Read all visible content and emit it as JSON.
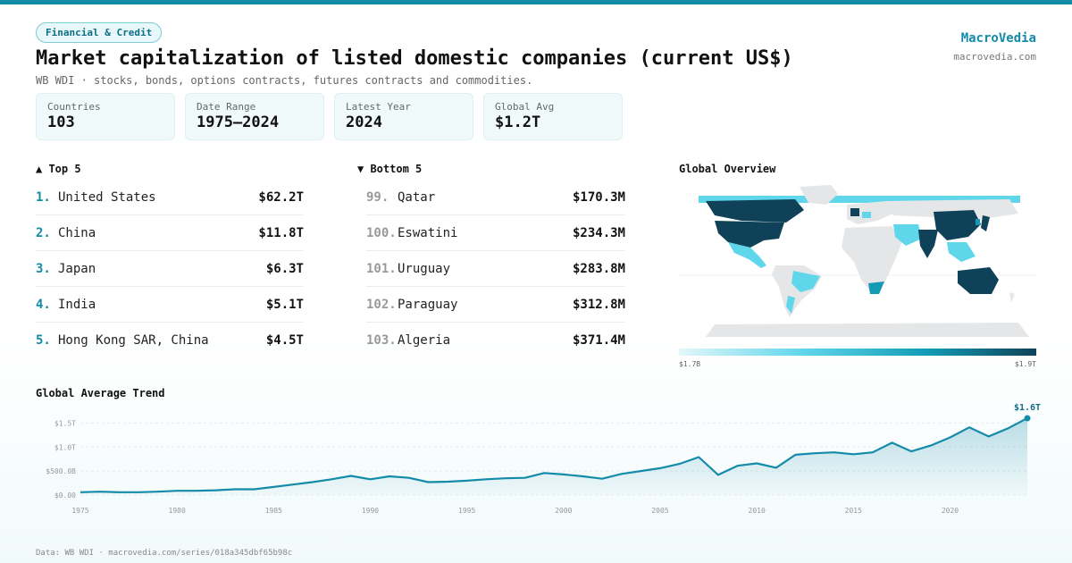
{
  "header": {
    "tag": "Financial & Credit",
    "title": "Market capitalization of listed domestic companies (current US$)",
    "subtitle": "WB WDI · stocks, bonds, options contracts, futures contracts and commodities."
  },
  "brand": {
    "name": "MacroVedia",
    "url": "macrovedia.com"
  },
  "stats": [
    {
      "label": "Countries",
      "value": "103"
    },
    {
      "label": "Date Range",
      "value": "1975–2024"
    },
    {
      "label": "Latest Year",
      "value": "2024"
    },
    {
      "label": "Global Avg",
      "value": "$1.2T"
    }
  ],
  "top5": {
    "title": "▲ Top 5",
    "items": [
      {
        "rank": "1.",
        "name": "United States",
        "value": "$62.2T"
      },
      {
        "rank": "2.",
        "name": "China",
        "value": "$11.8T"
      },
      {
        "rank": "3.",
        "name": "Japan",
        "value": "$6.3T"
      },
      {
        "rank": "4.",
        "name": "India",
        "value": "$5.1T"
      },
      {
        "rank": "5.",
        "name": "Hong Kong SAR, China",
        "value": "$4.5T"
      }
    ]
  },
  "bottom5": {
    "title": "▼ Bottom 5",
    "items": [
      {
        "rank": "99.",
        "name": "Qatar",
        "value": "$170.3M"
      },
      {
        "rank": "100.",
        "name": "Eswatini",
        "value": "$234.3M"
      },
      {
        "rank": "101.",
        "name": "Uruguay",
        "value": "$283.8M"
      },
      {
        "rank": "102.",
        "name": "Paraguay",
        "value": "$312.8M"
      },
      {
        "rank": "103.",
        "name": "Algeria",
        "value": "$371.4M"
      }
    ]
  },
  "map": {
    "title": "Global Overview",
    "legend_min": "$1.7B",
    "legend_max": "$1.9T",
    "colors": {
      "high": "#0f4259",
      "mid": "#5fd6ea",
      "low": "#e3f7fa",
      "none": "#e4e6e8"
    }
  },
  "trend": {
    "title": "Global Average Trend",
    "last_label": "$1.6T",
    "line_color": "#138ba9"
  },
  "chart_data": {
    "type": "area",
    "title": "Global Average Trend",
    "x_tick_labels": [
      "1975",
      "1980",
      "1985",
      "1990",
      "1995",
      "2000",
      "2005",
      "2010",
      "2015",
      "2020"
    ],
    "y_tick_labels": [
      "$0.00",
      "$500.0B",
      "$1.0T",
      "$1.5T"
    ],
    "ylim": [
      0,
      1.6
    ],
    "y_unit": "trillion US$",
    "x": [
      1975,
      1976,
      1977,
      1978,
      1979,
      1980,
      1981,
      1982,
      1983,
      1984,
      1985,
      1986,
      1987,
      1988,
      1989,
      1990,
      1991,
      1992,
      1993,
      1994,
      1995,
      1996,
      1997,
      1998,
      1999,
      2000,
      2001,
      2002,
      2003,
      2004,
      2005,
      2006,
      2007,
      2008,
      2009,
      2010,
      2011,
      2012,
      2013,
      2014,
      2015,
      2016,
      2017,
      2018,
      2019,
      2020,
      2021,
      2022,
      2023,
      2024
    ],
    "values": [
      0.06,
      0.07,
      0.06,
      0.06,
      0.07,
      0.09,
      0.09,
      0.1,
      0.12,
      0.12,
      0.17,
      0.22,
      0.27,
      0.33,
      0.4,
      0.33,
      0.39,
      0.36,
      0.27,
      0.28,
      0.3,
      0.33,
      0.35,
      0.36,
      0.46,
      0.43,
      0.39,
      0.34,
      0.44,
      0.5,
      0.56,
      0.65,
      0.79,
      0.42,
      0.61,
      0.66,
      0.57,
      0.84,
      0.87,
      0.89,
      0.85,
      0.89,
      1.09,
      0.91,
      1.03,
      1.2,
      1.41,
      1.22,
      1.39,
      1.6
    ]
  },
  "footer": "Data: WB WDI · macrovedia.com/series/018a345dbf65b98c"
}
